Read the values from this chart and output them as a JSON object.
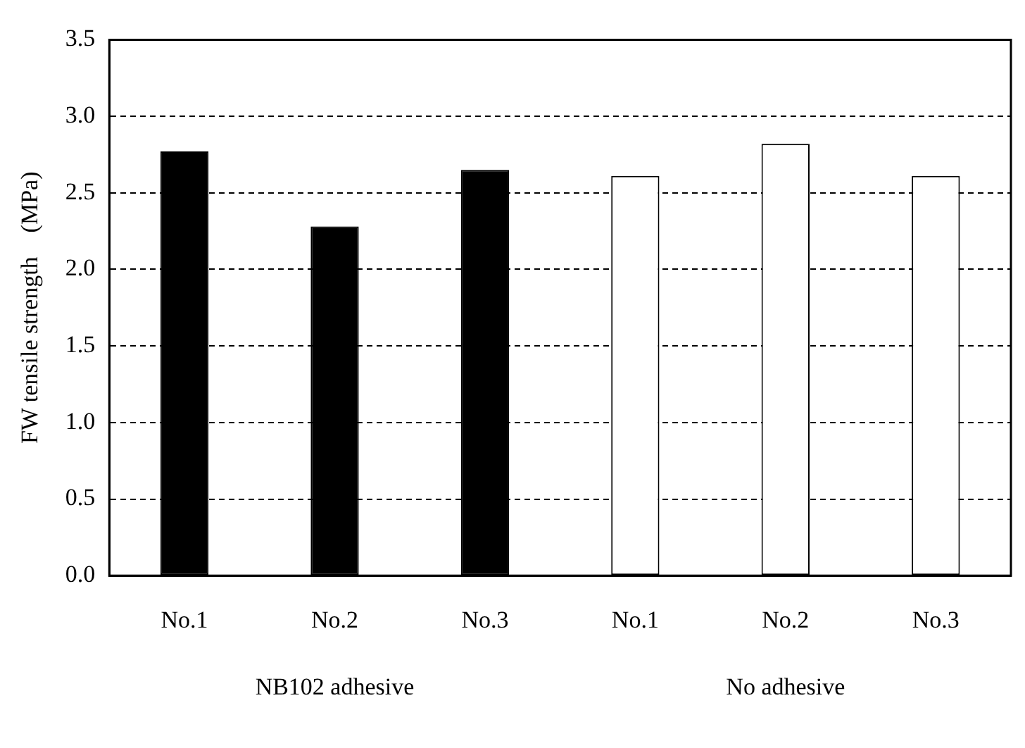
{
  "chart_data": {
    "type": "bar",
    "ylabel": "FW tensile strength　(MPa)",
    "categories": [
      "No.1",
      "No.2",
      "No.3",
      "No.1",
      "No.2",
      "No.3"
    ],
    "values": [
      2.77,
      2.28,
      2.65,
      2.61,
      2.82,
      2.61
    ],
    "colors": [
      "#000000",
      "#000000",
      "#000000",
      "#ffffff",
      "#ffffff",
      "#ffffff"
    ],
    "ylim": [
      0,
      3.5
    ],
    "yticks": [
      {
        "value": 0,
        "label": "0.0"
      },
      0.5,
      {
        "value": 1,
        "label": "1.0"
      },
      1.5,
      {
        "value": 2,
        "label": "2.0"
      },
      2.5,
      {
        "value": 3,
        "label": "3.0"
      },
      3.5
    ],
    "grid": "y",
    "annotations": [
      "NB102 adhesive",
      "No adhesive"
    ]
  }
}
